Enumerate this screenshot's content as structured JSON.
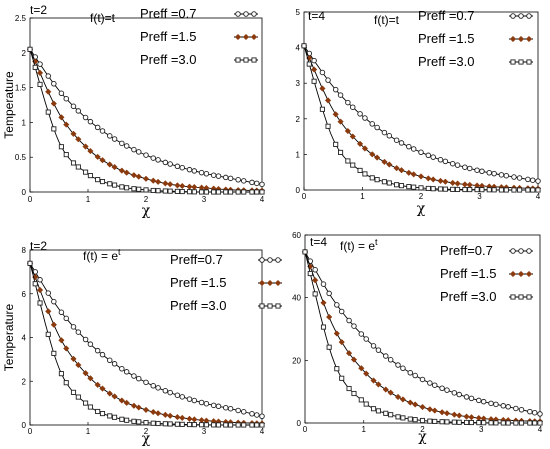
{
  "chart_data": [
    {
      "type": "line",
      "annotations": [
        "t=2",
        "f(t)=t"
      ],
      "xlabel": "χ",
      "ylabel": "Temperature",
      "xlim": [
        0,
        4
      ],
      "ylim": [
        0,
        2.5
      ],
      "xticks": [
        "0",
        "1",
        "2",
        "3",
        "4"
      ],
      "yticks": [
        "0",
        "0.5",
        "1",
        "1.5",
        "2",
        "2.5"
      ],
      "legend_position": "top-right",
      "series": [
        {
          "name": "Preff =0.7",
          "marker": "open-circle",
          "x": [
            0,
            0.5,
            1,
            1.5,
            2,
            2.5,
            3,
            3.5,
            4
          ],
          "values": [
            2.05,
            1.46,
            1.04,
            0.74,
            0.53,
            0.38,
            0.27,
            0.19,
            0.11
          ]
        },
        {
          "name": "Preff =1.5",
          "marker": "filled-diamond",
          "x": [
            0,
            0.5,
            1,
            1.5,
            2,
            2.5,
            3,
            3.5,
            4
          ],
          "values": [
            2.05,
            1.13,
            0.62,
            0.34,
            0.19,
            0.1,
            0.06,
            0.03,
            0.02
          ]
        },
        {
          "name": "Preff =3.0",
          "marker": "open-square",
          "x": [
            0,
            0.5,
            1,
            1.5,
            2,
            2.5,
            3,
            3.5,
            4
          ],
          "values": [
            2.05,
            0.72,
            0.26,
            0.09,
            0.03,
            0.01,
            0.0,
            0.0,
            0.0
          ]
        }
      ]
    },
    {
      "type": "line",
      "annotations": [
        "t=4",
        "f(t)=t"
      ],
      "xlabel": "χ",
      "ylabel": "",
      "xlim": [
        0,
        4
      ],
      "ylim": [
        0,
        5
      ],
      "xticks": [
        "0",
        "1",
        "2",
        "3",
        "4"
      ],
      "yticks": [
        "0",
        "1",
        "2",
        "3",
        "4",
        "5"
      ],
      "legend_position": "top-right",
      "series": [
        {
          "name": "Preff =0.7",
          "marker": "open-circle",
          "x": [
            0,
            0.5,
            1,
            1.5,
            2,
            2.5,
            3,
            3.5,
            4
          ],
          "values": [
            4.05,
            2.9,
            2.08,
            1.48,
            1.06,
            0.76,
            0.54,
            0.39,
            0.25
          ]
        },
        {
          "name": "Preff =1.5",
          "marker": "filled-diamond",
          "x": [
            0,
            0.5,
            1,
            1.5,
            2,
            2.5,
            3,
            3.5,
            4
          ],
          "values": [
            4.05,
            2.24,
            1.23,
            0.68,
            0.38,
            0.21,
            0.12,
            0.07,
            0.04
          ]
        },
        {
          "name": "Preff =3.0",
          "marker": "open-square",
          "x": [
            0,
            0.5,
            1,
            1.5,
            2,
            2.5,
            3,
            3.5,
            4
          ],
          "values": [
            4.05,
            1.42,
            0.5,
            0.18,
            0.06,
            0.02,
            0.01,
            0.0,
            0.0
          ]
        }
      ]
    },
    {
      "type": "line",
      "annotations": [
        "t=2",
        "f(t) = e"
      ],
      "annotation_superscript": "t",
      "xlabel": "χ",
      "ylabel": "Temperature",
      "xlim": [
        0,
        4
      ],
      "ylim": [
        0,
        8
      ],
      "xticks": [
        "0",
        "1",
        "2",
        "3",
        "4"
      ],
      "yticks": [
        "0",
        "2",
        "4",
        "6",
        "8"
      ],
      "legend_position": "top-right",
      "series": [
        {
          "name": "Preff=0.7",
          "marker": "open-circle",
          "x": [
            0,
            0.5,
            1,
            1.5,
            2,
            2.5,
            3,
            3.5,
            4
          ],
          "values": [
            7.39,
            5.3,
            3.8,
            2.72,
            1.95,
            1.4,
            1.0,
            0.72,
            0.4
          ]
        },
        {
          "name": "Preff =1.5",
          "marker": "filled-diamond",
          "x": [
            0,
            0.5,
            1,
            1.5,
            2,
            2.5,
            3,
            3.5,
            4
          ],
          "values": [
            7.39,
            4.08,
            2.25,
            1.24,
            0.69,
            0.38,
            0.21,
            0.12,
            0.07
          ]
        },
        {
          "name": "Preff =3.0",
          "marker": "open-square",
          "x": [
            0,
            0.5,
            1,
            1.5,
            2,
            2.5,
            3,
            3.5,
            4
          ],
          "values": [
            7.39,
            2.6,
            0.91,
            0.32,
            0.11,
            0.04,
            0.01,
            0.0,
            0.0
          ]
        }
      ]
    },
    {
      "type": "line",
      "annotations": [
        "t=4",
        "f(t) = e"
      ],
      "annotation_superscript": "t",
      "xlabel": "χ",
      "ylabel": "",
      "xlim": [
        0,
        4
      ],
      "ylim": [
        0,
        60
      ],
      "xticks": [
        "0",
        "1",
        "2",
        "3",
        "4"
      ],
      "yticks": [
        "0",
        "20",
        "40",
        "60"
      ],
      "legend_position": "top-right",
      "series": [
        {
          "name": "Preff=0.7",
          "marker": "open-circle",
          "x": [
            0,
            0.5,
            1,
            1.5,
            2,
            2.5,
            3,
            3.5,
            4
          ],
          "values": [
            54.6,
            38.8,
            27.6,
            19.6,
            13.9,
            9.9,
            7.0,
            5.0,
            2.9
          ]
        },
        {
          "name": "Preff =1.5",
          "marker": "filled-diamond",
          "x": [
            0,
            0.5,
            1,
            1.5,
            2,
            2.5,
            3,
            3.5,
            4
          ],
          "values": [
            54.6,
            30.1,
            16.6,
            9.2,
            5.1,
            2.8,
            1.5,
            0.85,
            0.5
          ]
        },
        {
          "name": "Preff =3.0",
          "marker": "open-square",
          "x": [
            0,
            0.5,
            1,
            1.5,
            2,
            2.5,
            3,
            3.5,
            4
          ],
          "values": [
            54.6,
            19.2,
            6.7,
            2.4,
            0.8,
            0.3,
            0.1,
            0.0,
            0.0
          ]
        }
      ]
    }
  ]
}
